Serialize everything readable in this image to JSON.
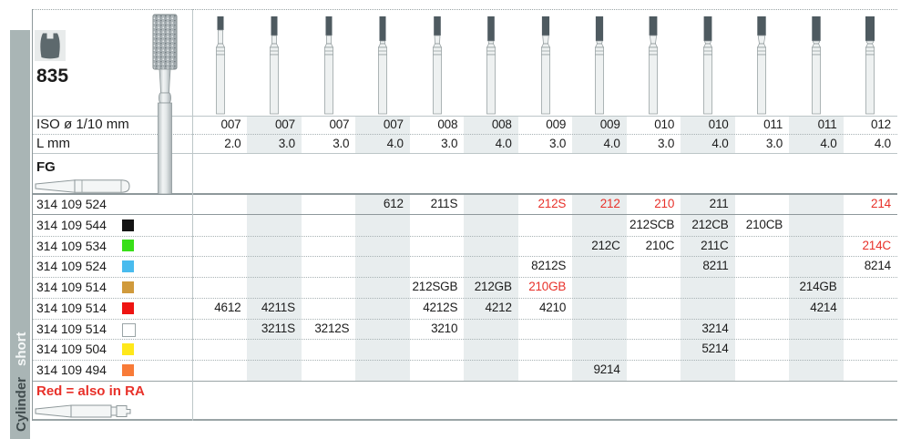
{
  "family": {
    "number": "835",
    "icon": "cylinder-bur-profile-icon"
  },
  "sidebar": {
    "group": "Cylinder",
    "variant": "short"
  },
  "shank": {
    "fg_label": "FG"
  },
  "note": {
    "text": "Red = also in RA"
  },
  "colors": {
    "accent_red": "#e8312a",
    "band": "#e8edee",
    "sidebar_strip": "#a9b5b5"
  },
  "grit_colors": {
    "black": "#141414",
    "green": "#38df18",
    "cyan": "#49bbee",
    "ochre": "#d09a3c",
    "red": "#ee1412",
    "white": "#ffffff",
    "yellow": "#ffe81a",
    "orange": "#f87b38"
  },
  "table": {
    "iso_label": "ISO ø 1/10 mm",
    "l_label": "L mm",
    "columns": [
      {
        "iso": "007",
        "l": "2.0"
      },
      {
        "iso": "007",
        "l": "3.0"
      },
      {
        "iso": "007",
        "l": "3.0"
      },
      {
        "iso": "007",
        "l": "4.0"
      },
      {
        "iso": "008",
        "l": "3.0"
      },
      {
        "iso": "008",
        "l": "4.0"
      },
      {
        "iso": "009",
        "l": "3.0"
      },
      {
        "iso": "009",
        "l": "4.0"
      },
      {
        "iso": "010",
        "l": "3.0"
      },
      {
        "iso": "010",
        "l": "4.0"
      },
      {
        "iso": "011",
        "l": "3.0"
      },
      {
        "iso": "011",
        "l": "4.0"
      },
      {
        "iso": "012",
        "l": "4.0"
      }
    ],
    "rows": [
      {
        "order_no": "314 109 524",
        "grit": null,
        "cells": [
          {
            "col": 4,
            "code": "612"
          },
          {
            "col": 5,
            "code": "211S"
          },
          {
            "col": 7,
            "code": "212S",
            "red": true
          },
          {
            "col": 8,
            "code": "212",
            "red": true
          },
          {
            "col": 9,
            "code": "210",
            "red": true
          },
          {
            "col": 10,
            "code": "211"
          },
          {
            "col": 13,
            "code": "214",
            "red": true
          }
        ]
      },
      {
        "order_no": "314 109 544",
        "grit": "black",
        "cells": [
          {
            "col": 9,
            "code": "212SCB"
          },
          {
            "col": 10,
            "code": "212CB"
          },
          {
            "col": 11,
            "code": "210CB"
          }
        ]
      },
      {
        "order_no": "314 109 534",
        "grit": "green",
        "cells": [
          {
            "col": 8,
            "code": "212C"
          },
          {
            "col": 9,
            "code": "210C"
          },
          {
            "col": 10,
            "code": "211C"
          },
          {
            "col": 13,
            "code": "214C",
            "red": true
          }
        ]
      },
      {
        "order_no": "314 109 524",
        "grit": "cyan",
        "cells": [
          {
            "col": 7,
            "code": "8212S"
          },
          {
            "col": 10,
            "code": "8211"
          },
          {
            "col": 13,
            "code": "8214"
          }
        ]
      },
      {
        "order_no": "314 109 514",
        "grit": "ochre",
        "cells": [
          {
            "col": 5,
            "code": "212SGB"
          },
          {
            "col": 6,
            "code": "212GB"
          },
          {
            "col": 7,
            "code": "210GB",
            "red": true
          },
          {
            "col": 12,
            "code": "214GB"
          }
        ]
      },
      {
        "order_no": "314 109 514",
        "grit": "red",
        "cells": [
          {
            "col": 1,
            "code": "4612"
          },
          {
            "col": 2,
            "code": "4211S"
          },
          {
            "col": 5,
            "code": "4212S"
          },
          {
            "col": 6,
            "code": "4212"
          },
          {
            "col": 7,
            "code": "4210"
          },
          {
            "col": 12,
            "code": "4214"
          }
        ]
      },
      {
        "order_no": "314 109 514",
        "grit": "white",
        "cells": [
          {
            "col": 2,
            "code": "3211S"
          },
          {
            "col": 3,
            "code": "3212S"
          },
          {
            "col": 5,
            "code": "3210"
          },
          {
            "col": 10,
            "code": "3214"
          }
        ]
      },
      {
        "order_no": "314 109 504",
        "grit": "yellow",
        "cells": [
          {
            "col": 10,
            "code": "5214"
          }
        ]
      },
      {
        "order_no": "314 109 494",
        "grit": "orange",
        "cells": [
          {
            "col": 8,
            "code": "9214"
          }
        ]
      }
    ]
  }
}
